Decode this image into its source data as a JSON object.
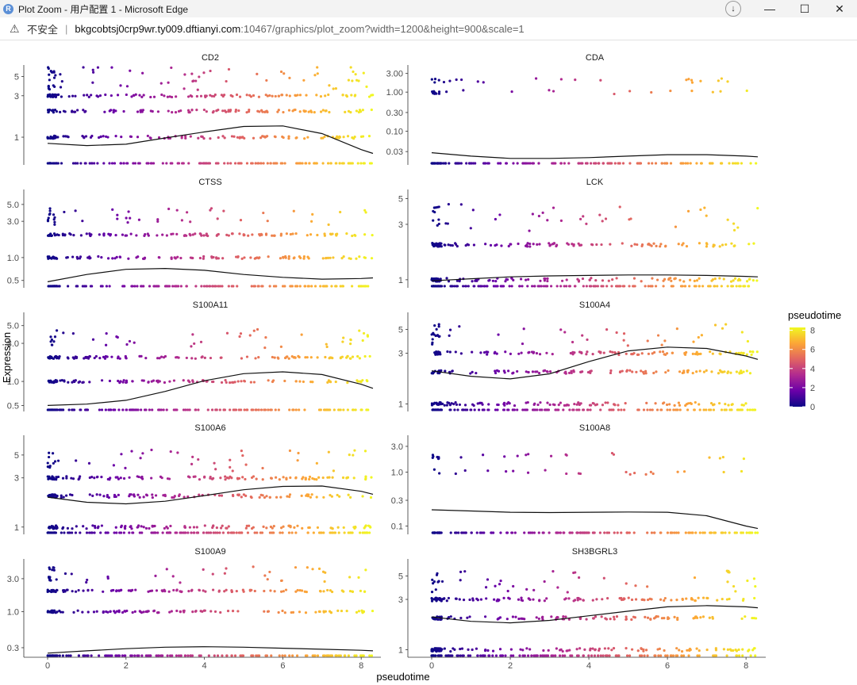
{
  "window": {
    "title": "Plot Zoom - 用户配置 1 - Microsoft Edge",
    "app_icon": "R",
    "controls": {
      "minimize": "—",
      "maximize": "☐",
      "close": "✕",
      "download": "↓"
    }
  },
  "address_bar": {
    "security_icon": "warning-icon",
    "security_label": "不安全",
    "separator": "|",
    "url_host": "bkgcobtsj0crp9wr.ty009.dftianyi.com",
    "url_rest": ":10467/graphics/plot_zoom?width=1200&height=900&scale=1"
  },
  "chart_data": {
    "type": "scatter",
    "xlabel": "pseudotime",
    "ylabel": "Expression",
    "x_range": [
      0,
      8.3
    ],
    "x_ticks": [
      0,
      2,
      4,
      6,
      8
    ],
    "y_scale": "log",
    "legend": {
      "title": "pseudotime",
      "placement": "right",
      "ticks": [
        0,
        2,
        4,
        6,
        8
      ],
      "colors": [
        "#0d0887",
        "#6a00a8",
        "#b12a90",
        "#e16462",
        "#fca636",
        "#f0f921"
      ]
    },
    "panels": [
      {
        "gene": "CD2",
        "ylim": [
          0.5,
          6.5
        ],
        "y_ticks": [
          1,
          3,
          5
        ],
        "tick_labels": [
          "1",
          "3",
          "5"
        ],
        "levels": [
          0.5,
          1,
          2,
          3
        ],
        "sparse_levels": [
          4,
          5,
          6
        ],
        "fit": [
          [
            0,
            0.85
          ],
          [
            1,
            0.8
          ],
          [
            2,
            0.83
          ],
          [
            3,
            0.98
          ],
          [
            4,
            1.15
          ],
          [
            5,
            1.33
          ],
          [
            6,
            1.35
          ],
          [
            7,
            1.1
          ],
          [
            8,
            0.72
          ],
          [
            8.3,
            0.65
          ]
        ]
      },
      {
        "gene": "CDA",
        "ylim": [
          0.015,
          4.5
        ],
        "y_ticks": [
          0.03,
          0.1,
          0.3,
          1,
          3
        ],
        "tick_labels": [
          "0.03",
          "0.10",
          "0.30",
          "1.00",
          "3.00"
        ],
        "levels": [
          0.015
        ],
        "sparse_levels": [
          2,
          1
        ],
        "fit": [
          [
            0,
            0.028
          ],
          [
            1,
            0.023
          ],
          [
            2,
            0.02
          ],
          [
            3,
            0.02
          ],
          [
            4,
            0.021
          ],
          [
            5,
            0.023
          ],
          [
            6,
            0.025
          ],
          [
            7,
            0.025
          ],
          [
            8,
            0.023
          ],
          [
            8.3,
            0.022
          ]
        ]
      },
      {
        "gene": "CTSS",
        "ylim": [
          0.42,
          7.5
        ],
        "y_ticks": [
          0.5,
          1,
          3,
          5
        ],
        "tick_labels": [
          "0.5",
          "1.0",
          "3.0",
          "5.0"
        ],
        "levels": [
          0.42,
          1,
          2
        ],
        "sparse_levels": [
          3,
          4
        ],
        "fit": [
          [
            0,
            0.48
          ],
          [
            1,
            0.6
          ],
          [
            2,
            0.7
          ],
          [
            3,
            0.72
          ],
          [
            4,
            0.68
          ],
          [
            5,
            0.6
          ],
          [
            6,
            0.55
          ],
          [
            7,
            0.52
          ],
          [
            8,
            0.53
          ],
          [
            8.3,
            0.54
          ]
        ]
      },
      {
        "gene": "LCK",
        "ylim": [
          0.88,
          5.8
        ],
        "y_ticks": [
          1,
          3,
          5
        ],
        "tick_labels": [
          "1",
          "3",
          "5"
        ],
        "levels": [
          0.88,
          1,
          2
        ],
        "sparse_levels": [
          3,
          4
        ],
        "fit": [
          [
            0,
            0.98
          ],
          [
            1,
            1.02
          ],
          [
            2,
            1.06
          ],
          [
            3,
            1.08
          ],
          [
            4,
            1.09
          ],
          [
            5,
            1.1
          ],
          [
            6,
            1.1
          ],
          [
            7,
            1.09
          ],
          [
            8,
            1.07
          ],
          [
            8.3,
            1.06
          ]
        ]
      },
      {
        "gene": "S100A11",
        "ylim": [
          0.44,
          7
        ],
        "y_ticks": [
          0.5,
          1,
          3,
          5
        ],
        "tick_labels": [
          "0.5",
          "1.0",
          "3.0",
          "5.0"
        ],
        "levels": [
          0.44,
          1,
          2
        ],
        "sparse_levels": [
          3,
          4
        ],
        "fit": [
          [
            0,
            0.5
          ],
          [
            1,
            0.52
          ],
          [
            2,
            0.58
          ],
          [
            3,
            0.75
          ],
          [
            4,
            1.02
          ],
          [
            5,
            1.25
          ],
          [
            6,
            1.32
          ],
          [
            7,
            1.22
          ],
          [
            8,
            0.92
          ],
          [
            8.3,
            0.82
          ]
        ]
      },
      {
        "gene": "S100A4",
        "ylim": [
          0.88,
          7
        ],
        "y_ticks": [
          1,
          3,
          5
        ],
        "tick_labels": [
          "1",
          "3",
          "5"
        ],
        "levels": [
          0.88,
          1,
          2,
          3
        ],
        "sparse_levels": [
          4,
          5
        ],
        "fit": [
          [
            0,
            2.05
          ],
          [
            1,
            1.82
          ],
          [
            2,
            1.72
          ],
          [
            3,
            1.92
          ],
          [
            4,
            2.5
          ],
          [
            5,
            3.15
          ],
          [
            6,
            3.42
          ],
          [
            7,
            3.32
          ],
          [
            8,
            2.82
          ],
          [
            8.3,
            2.62
          ]
        ]
      },
      {
        "gene": "S100A6",
        "ylim": [
          0.88,
          7.5
        ],
        "y_ticks": [
          1,
          3,
          5
        ],
        "tick_labels": [
          "1",
          "3",
          "5"
        ],
        "levels": [
          0.88,
          1,
          2,
          3
        ],
        "sparse_levels": [
          4,
          5
        ],
        "fit": [
          [
            0,
            1.95
          ],
          [
            1,
            1.74
          ],
          [
            2,
            1.68
          ],
          [
            3,
            1.78
          ],
          [
            4,
            2.02
          ],
          [
            5,
            2.3
          ],
          [
            6,
            2.48
          ],
          [
            7,
            2.5
          ],
          [
            8,
            2.22
          ],
          [
            8.3,
            2.08
          ]
        ]
      },
      {
        "gene": "S100A8",
        "ylim": [
          0.075,
          4.5
        ],
        "y_ticks": [
          0.1,
          0.3,
          1,
          3
        ],
        "tick_labels": [
          "0.1",
          "0.3",
          "1.0",
          "3.0"
        ],
        "levels": [
          0.075
        ],
        "sparse_levels": [
          2,
          1
        ],
        "fit": [
          [
            0,
            0.2
          ],
          [
            1,
            0.19
          ],
          [
            2,
            0.18
          ],
          [
            3,
            0.178
          ],
          [
            4,
            0.18
          ],
          [
            5,
            0.182
          ],
          [
            6,
            0.18
          ],
          [
            7,
            0.155
          ],
          [
            8,
            0.1
          ],
          [
            8.3,
            0.09
          ]
        ]
      },
      {
        "gene": "S100A9",
        "ylim": [
          0.23,
          5.5
        ],
        "y_ticks": [
          0.3,
          1,
          3
        ],
        "tick_labels": [
          "0.3",
          "1.0",
          "3.0"
        ],
        "levels": [
          0.23,
          1,
          2
        ],
        "sparse_levels": [
          3,
          4
        ],
        "fit": [
          [
            0,
            0.25
          ],
          [
            1,
            0.27
          ],
          [
            2,
            0.29
          ],
          [
            3,
            0.305
          ],
          [
            4,
            0.31
          ],
          [
            5,
            0.305
          ],
          [
            6,
            0.295
          ],
          [
            7,
            0.285
          ],
          [
            8,
            0.275
          ],
          [
            8.3,
            0.27
          ]
        ]
      },
      {
        "gene": "SH3BGRL3",
        "ylim": [
          0.88,
          7
        ],
        "y_ticks": [
          1,
          3,
          5
        ],
        "tick_labels": [
          "1",
          "3",
          "5"
        ],
        "levels": [
          0.88,
          1,
          2,
          3
        ],
        "sparse_levels": [
          4,
          5
        ],
        "fit": [
          [
            0,
            2.05
          ],
          [
            1,
            1.86
          ],
          [
            2,
            1.8
          ],
          [
            3,
            1.9
          ],
          [
            4,
            2.1
          ],
          [
            5,
            2.32
          ],
          [
            6,
            2.55
          ],
          [
            7,
            2.62
          ],
          [
            8,
            2.55
          ],
          [
            8.3,
            2.5
          ]
        ]
      }
    ]
  }
}
